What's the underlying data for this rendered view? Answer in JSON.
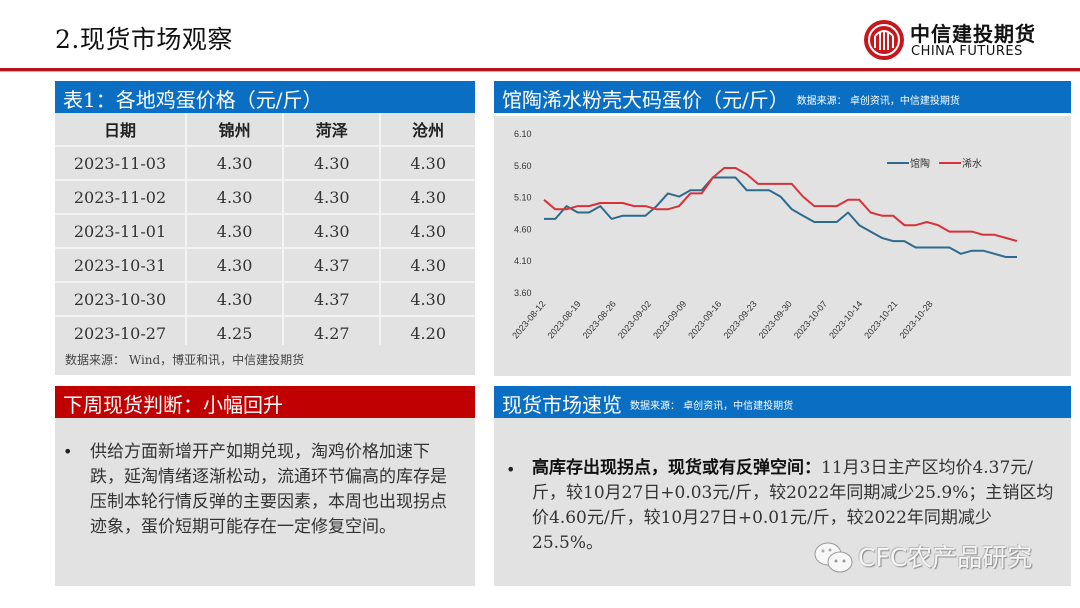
{
  "page": {
    "title": "2.现货市场观察",
    "logo": {
      "cn": "中信建投期货",
      "en": "CHINA FUTURES"
    },
    "colors": {
      "brand_red": "#c8161d",
      "header_blue": "#0a6fc2",
      "header_red": "#c00000",
      "panel_gray": "#e2e2e2"
    }
  },
  "table_panel": {
    "title": "表1：各地鸡蛋价格（元/斤）",
    "columns": [
      "日期",
      "锦州",
      "菏泽",
      "沧州"
    ],
    "rows": [
      [
        "2023-11-03",
        "4.30",
        "4.30",
        "4.30"
      ],
      [
        "2023-11-02",
        "4.30",
        "4.30",
        "4.30"
      ],
      [
        "2023-11-01",
        "4.30",
        "4.30",
        "4.30"
      ],
      [
        "2023-10-31",
        "4.30",
        "4.37",
        "4.30"
      ],
      [
        "2023-10-30",
        "4.30",
        "4.37",
        "4.30"
      ],
      [
        "2023-10-27",
        "4.25",
        "4.27",
        "4.20"
      ]
    ],
    "source": "数据来源： Wind，博亚和讯，中信建投期货"
  },
  "chart_panel": {
    "title": "馆陶浠水粉壳大码蛋价（元/斤）",
    "source": "数据来源： 卓创资讯，中信建投期货"
  },
  "chart_data": {
    "type": "line",
    "title": "馆陶浠水粉壳大码蛋价（元/斤）",
    "xlabel": "",
    "ylabel": "",
    "ylim": [
      3.6,
      6.1
    ],
    "yticks": [
      "6.10",
      "5.60",
      "5.10",
      "4.60",
      "4.10",
      "3.60"
    ],
    "xticks": [
      "2023-08-12",
      "2023-08-19",
      "2023-08-26",
      "2023-09-02",
      "2023-09-09",
      "2023-09-16",
      "2023-09-23",
      "2023-09-30",
      "2023-10-07",
      "2023-10-14",
      "2023-10-21",
      "2023-10-28"
    ],
    "grid": false,
    "legend_position": "upper right",
    "x": [
      "08-12",
      "08-14",
      "08-16",
      "08-18",
      "08-20",
      "08-22",
      "08-24",
      "08-26",
      "08-28",
      "08-30",
      "09-01",
      "09-03",
      "09-05",
      "09-07",
      "09-09",
      "09-11",
      "09-13",
      "09-15",
      "09-17",
      "09-19",
      "09-21",
      "09-23",
      "09-25",
      "09-27",
      "09-29",
      "10-01",
      "10-03",
      "10-05",
      "10-07",
      "10-09",
      "10-11",
      "10-13",
      "10-15",
      "10-17",
      "10-19",
      "10-21",
      "10-23",
      "10-25",
      "10-27",
      "10-29",
      "10-31",
      "11-02",
      "11-03"
    ],
    "series": [
      {
        "name": "馆陶",
        "color": "#2e6a8e",
        "values": [
          4.75,
          4.75,
          4.95,
          4.85,
          4.85,
          4.95,
          4.75,
          4.8,
          4.8,
          4.8,
          4.95,
          5.15,
          5.1,
          5.2,
          5.2,
          5.4,
          5.4,
          5.4,
          5.2,
          5.2,
          5.2,
          5.1,
          4.9,
          4.8,
          4.7,
          4.7,
          4.7,
          4.85,
          4.65,
          4.55,
          4.45,
          4.4,
          4.4,
          4.3,
          4.3,
          4.3,
          4.3,
          4.2,
          4.25,
          4.25,
          4.2,
          4.15,
          4.15
        ]
      },
      {
        "name": "浠水",
        "color": "#d6323a",
        "values": [
          5.05,
          4.9,
          4.9,
          4.95,
          4.95,
          5.0,
          5.0,
          5.0,
          4.95,
          4.95,
          4.9,
          4.9,
          4.95,
          5.15,
          5.15,
          5.4,
          5.55,
          5.55,
          5.45,
          5.3,
          5.3,
          5.3,
          5.3,
          5.1,
          4.95,
          4.95,
          4.95,
          5.05,
          5.05,
          4.85,
          4.8,
          4.8,
          4.65,
          4.65,
          4.7,
          4.65,
          4.55,
          4.55,
          4.55,
          4.5,
          4.5,
          4.45,
          4.4
        ]
      }
    ]
  },
  "judgment_panel": {
    "title": "下周现货判断：小幅回升",
    "bullet": "供给方面新增开产如期兑现，淘鸡价格加速下跌，延淘情绪逐渐松动，流通环节偏高的库存是压制本轮行情反弹的主要因素，本周也出现拐点迹象，蛋价短期可能存在一定修复空间。"
  },
  "overview_panel": {
    "title": "现货市场速览",
    "source": "数据来源： 卓创资讯，中信建投期货",
    "bullet_bold": "高库存出现拐点，现货或有反弹空间：",
    "bullet_text": "11月3日主产区均价4.37元/斤，较10月27日+0.03元/斤，较2022年同期减少25.9%；主销区均价4.60元/斤，较10月27日+0.01元/斤，较2022年同期减少25.5%。"
  },
  "watermark": {
    "icon": "wechat-icon",
    "text": "CFC农产品研究"
  }
}
